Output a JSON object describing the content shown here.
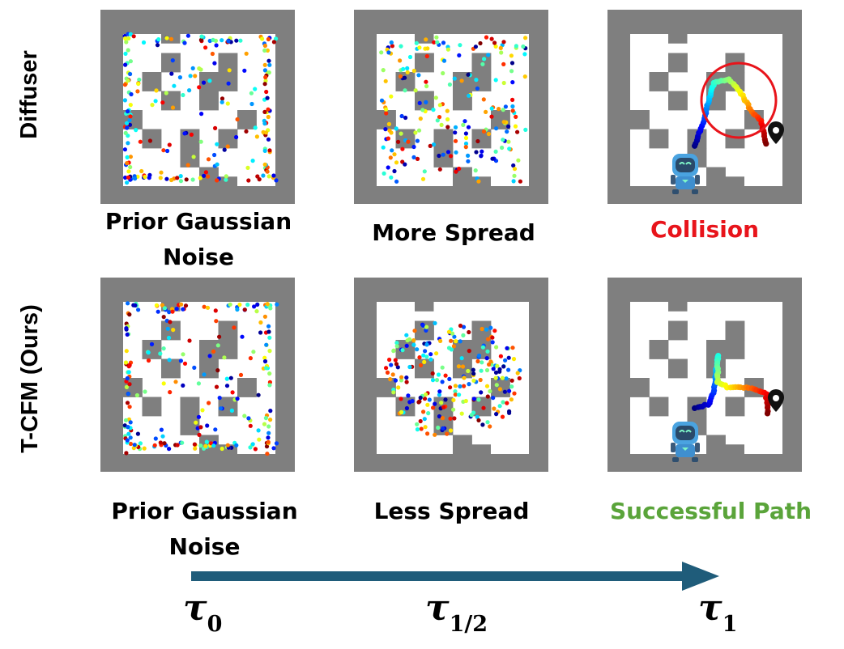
{
  "row_labels": {
    "top": "Diffuser",
    "bottom": "T-CFM (Ours)"
  },
  "captions": {
    "top": [
      "Prior Gaussian Noise",
      "More Spread",
      "Collision"
    ],
    "bottom": [
      "Prior Gaussian Noise",
      "Less Spread",
      "Successful Path"
    ]
  },
  "time_axis": {
    "tau_symbol": "τ",
    "ticks": [
      {
        "symbol": "τ",
        "subscript": "0"
      },
      {
        "symbol": "τ",
        "subscript": "1/2"
      },
      {
        "symbol": "τ",
        "subscript": "1"
      }
    ]
  },
  "colors": {
    "wall": "#7f7f7f",
    "floor": "#ffffff",
    "collision_text": "#e8141b",
    "success_text": "#5aa43a",
    "collision_circle": "#e8141b",
    "arrow": "#1f5c7a",
    "trajectory_colormap": "jet"
  },
  "icons": [
    "robot-icon",
    "goal-marker-icon",
    "collision-circle"
  ]
}
